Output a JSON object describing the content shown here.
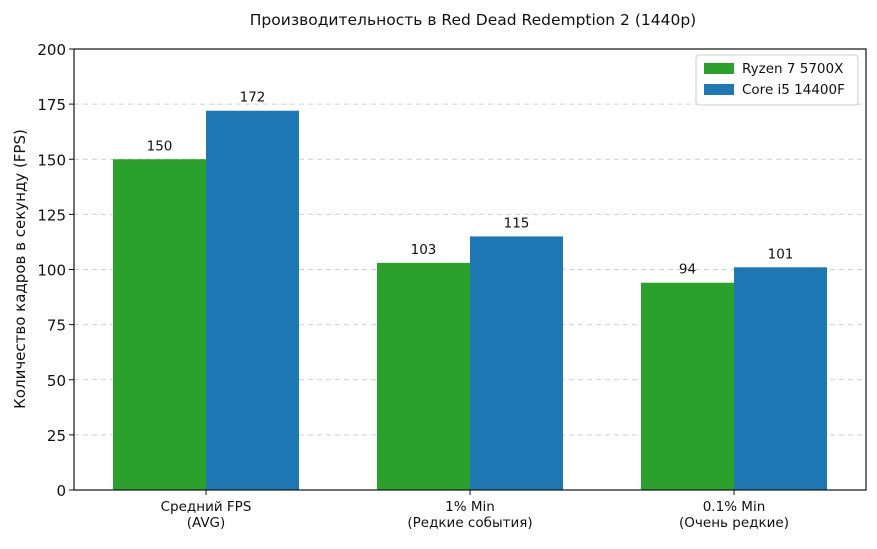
{
  "chart_data": {
    "type": "bar",
    "title": "Производительность в Red Dead Redemption 2 (1440p)",
    "xlabel": "",
    "ylabel": "Количество кадров в секунду (FPS)",
    "ylim": [
      0,
      200
    ],
    "yticks": [
      0,
      25,
      50,
      75,
      100,
      125,
      150,
      175,
      200
    ],
    "grid": "horizontal-dashed",
    "legend_position": "top-right",
    "categories": [
      [
        "Средний FPS",
        "(AVG)"
      ],
      [
        "1% Min",
        "(Редкие события)"
      ],
      [
        "0.1% Min",
        "(Очень редкие)"
      ]
    ],
    "series": [
      {
        "name": "Ryzen 7 5700X",
        "color": "#2ca02c",
        "values": [
          150,
          103,
          94
        ]
      },
      {
        "name": "Core i5 14400F",
        "color": "#1f77b4",
        "values": [
          172,
          115,
          101
        ]
      }
    ]
  }
}
